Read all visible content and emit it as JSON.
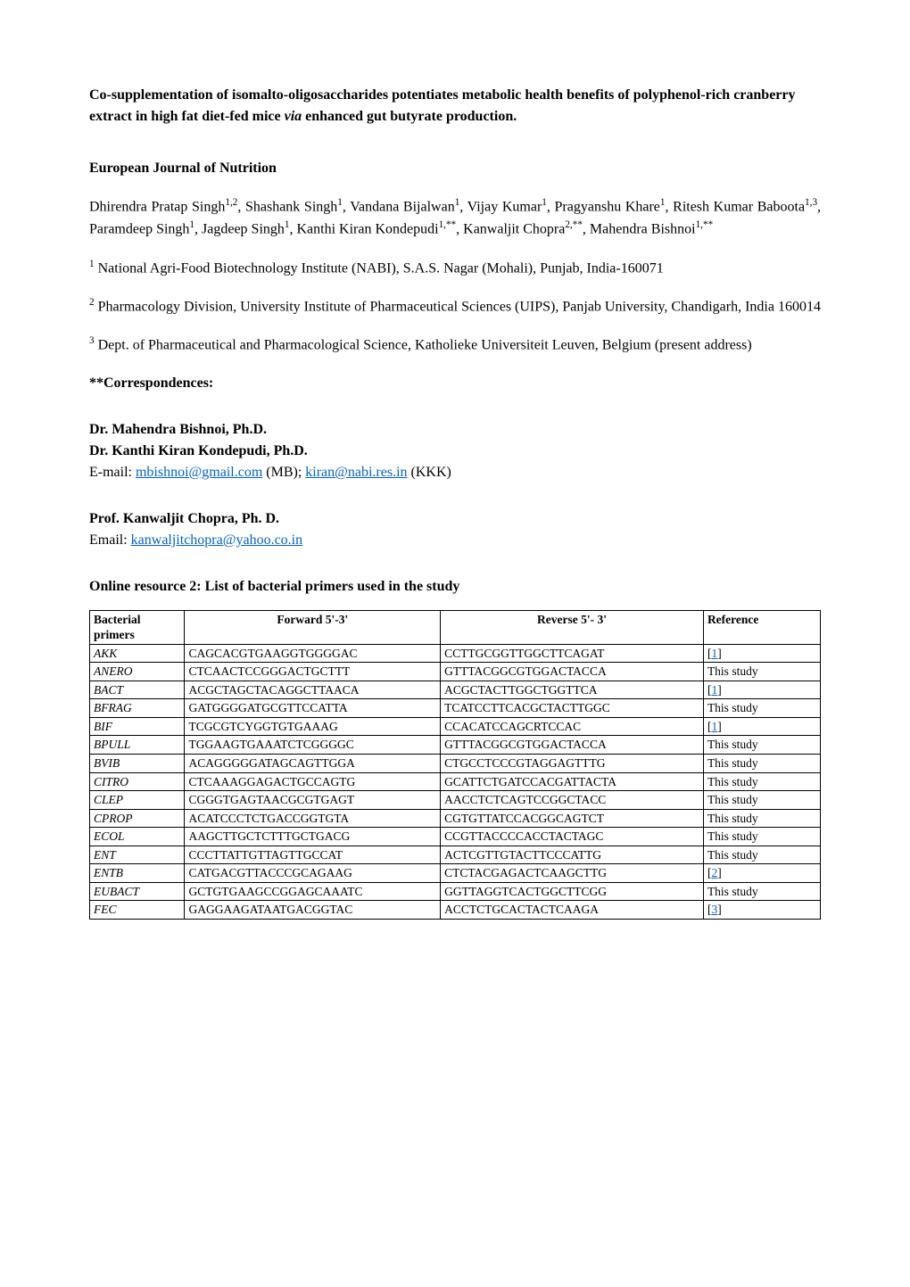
{
  "title": {
    "text_before_via": "Co-supplementation of isomalto-oligosaccharides potentiates metabolic health benefits of polyphenol-rich cranberry extract in high fat diet-fed mice ",
    "via": "via",
    "text_after_via": " enhanced gut butyrate production."
  },
  "journal": "European Journal of Nutrition",
  "authors": [
    {
      "name": "Dhirendra Pratap Singh",
      "sup": "1,2"
    },
    {
      "name": "Shashank Singh",
      "sup": "1"
    },
    {
      "name": "Vandana Bijalwan",
      "sup": "1"
    },
    {
      "name": "Vijay Kumar",
      "sup": "1"
    },
    {
      "name": "Pragyanshu Khare",
      "sup": "1"
    },
    {
      "name": "Ritesh Kumar Baboota",
      "sup": "1,3"
    },
    {
      "name": "Paramdeep Singh",
      "sup": "1"
    },
    {
      "name": "Jagdeep Singh",
      "sup": "1"
    },
    {
      "name": "Kanthi Kiran Kondepudi",
      "sup": "1,**"
    },
    {
      "name": "Kanwaljit Chopra",
      "sup": "2,**"
    },
    {
      "name": "Mahendra Bishnoi",
      "sup": "1,**"
    }
  ],
  "affiliations": [
    {
      "sup": "1",
      "text": " National Agri-Food Biotechnology Institute (NABI), S.A.S. Nagar (Mohali), Punjab, India-160071"
    },
    {
      "sup": "2",
      "text": " Pharmacology Division, University Institute of Pharmaceutical Sciences (UIPS), Panjab University, Chandigarh, India 160014"
    },
    {
      "sup": "3",
      "text": " Dept. of Pharmaceutical and Pharmacological Science, Katholieke Universiteit Leuven, Belgium (present address)"
    }
  ],
  "correspondences_label": "**Correspondences:",
  "corresp": [
    {
      "names": [
        "Dr. Mahendra Bishnoi, Ph.D.",
        "Dr. Kanthi Kiran Kondepudi, Ph.D."
      ],
      "email_label": "E-mail:  ",
      "emails": [
        {
          "addr": "mbishnoi@gmail.com",
          "suffix": " (MB); "
        },
        {
          "addr": "kiran@nabi.res.in",
          "suffix": " (KKK)"
        }
      ]
    },
    {
      "names": [
        "Prof. Kanwaljit Chopra, Ph. D."
      ],
      "email_label": "Email: ",
      "emails": [
        {
          "addr": "kanwaljitchopra@yahoo.co.in",
          "suffix": ""
        }
      ]
    }
  ],
  "resource_title": "Online resource 2: List of bacterial primers used in the study",
  "table": {
    "headers": {
      "primer": "Bacterial primers",
      "forward": "Forward 5'-3'",
      "reverse": "Reverse 5'- 3'",
      "reference": "Reference"
    },
    "rows": [
      {
        "name": "AKK",
        "fwd": "CAGCACGTGAAGGTGGGGAC",
        "rev": "CCTTGCGGTTGGCTTCAGAT",
        "ref_link": "1"
      },
      {
        "name": "ANERO",
        "fwd": "CTCAACTCCGGGACTGCTTT",
        "rev": "GTTTACGGCGTGGACTACCA",
        "ref_text": "This study"
      },
      {
        "name": "BACT",
        "fwd": "ACGCTAGCTACAGGCTTAACA",
        "rev": "ACGCTACTTGGCTGGTTCA",
        "ref_link": "1"
      },
      {
        "name": "BFRAG",
        "fwd": "GATGGGGATGCGTTCCATTA",
        "rev": "TCATCCTTCACGCTACTTGGC",
        "ref_text": "This study"
      },
      {
        "name": "BIF",
        "fwd": "TCGCGTCYGGTGTGAAAG",
        "rev": "CCACATCCAGCRTCCAC",
        "ref_link": "1"
      },
      {
        "name": "BPULL",
        "fwd": "TGGAAGTGAAATCTCGGGGC",
        "rev": "GTTTACGGCGTGGACTACCA",
        "ref_text": "This study"
      },
      {
        "name": "BVIB",
        "fwd": "ACAGGGGGATAGCAGTTGGA",
        "rev": "CTGCCTCCCGTAGGAGTTTG",
        "ref_text": "This study"
      },
      {
        "name": "CITRO",
        "fwd": "CTCAAAGGAGACTGCCAGTG",
        "rev": "GCATTCTGATCCACGATTACTA",
        "ref_text": "This study"
      },
      {
        "name": "CLEP",
        "fwd": "CGGGTGAGTAACGCGTGAGT",
        "rev": "AACCTCTCAGTCCGGCTACC",
        "ref_text": "This study"
      },
      {
        "name": "CPROP",
        "fwd": "ACATCCCTCTGACCGGTGTA",
        "rev": "CGTGTTATCCACGGCAGTCT",
        "ref_text": "This study"
      },
      {
        "name": "ECOL",
        "fwd": "AAGCTTGCTCTTTGCTGACG",
        "rev": "CCGTTACCCCACCTACTAGC",
        "ref_text": "This study"
      },
      {
        "name": "ENT",
        "fwd": "CCCTTATTGTTAGTTGCCAT",
        "rev": "ACTCGTTGTACTTCCCATTG",
        "ref_text": "This study"
      },
      {
        "name": "ENTB",
        "fwd": "CATGACGTTACCCGCAGAAG",
        "rev": "CTCTACGAGACTCAAGCTTG",
        "ref_link": "2"
      },
      {
        "name": "EUBACT",
        "fwd": "GCTGTGAAGCCGGAGCAAATC",
        "rev": "GGTTAGGTCACTGGCTTCGG",
        "ref_text": "This study"
      },
      {
        "name": "FEC",
        "fwd": "GAGGAAGATAATGACGGTAC",
        "rev": "ACCTCTGCACTACTCAAGA",
        "ref_link": "3"
      }
    ]
  }
}
